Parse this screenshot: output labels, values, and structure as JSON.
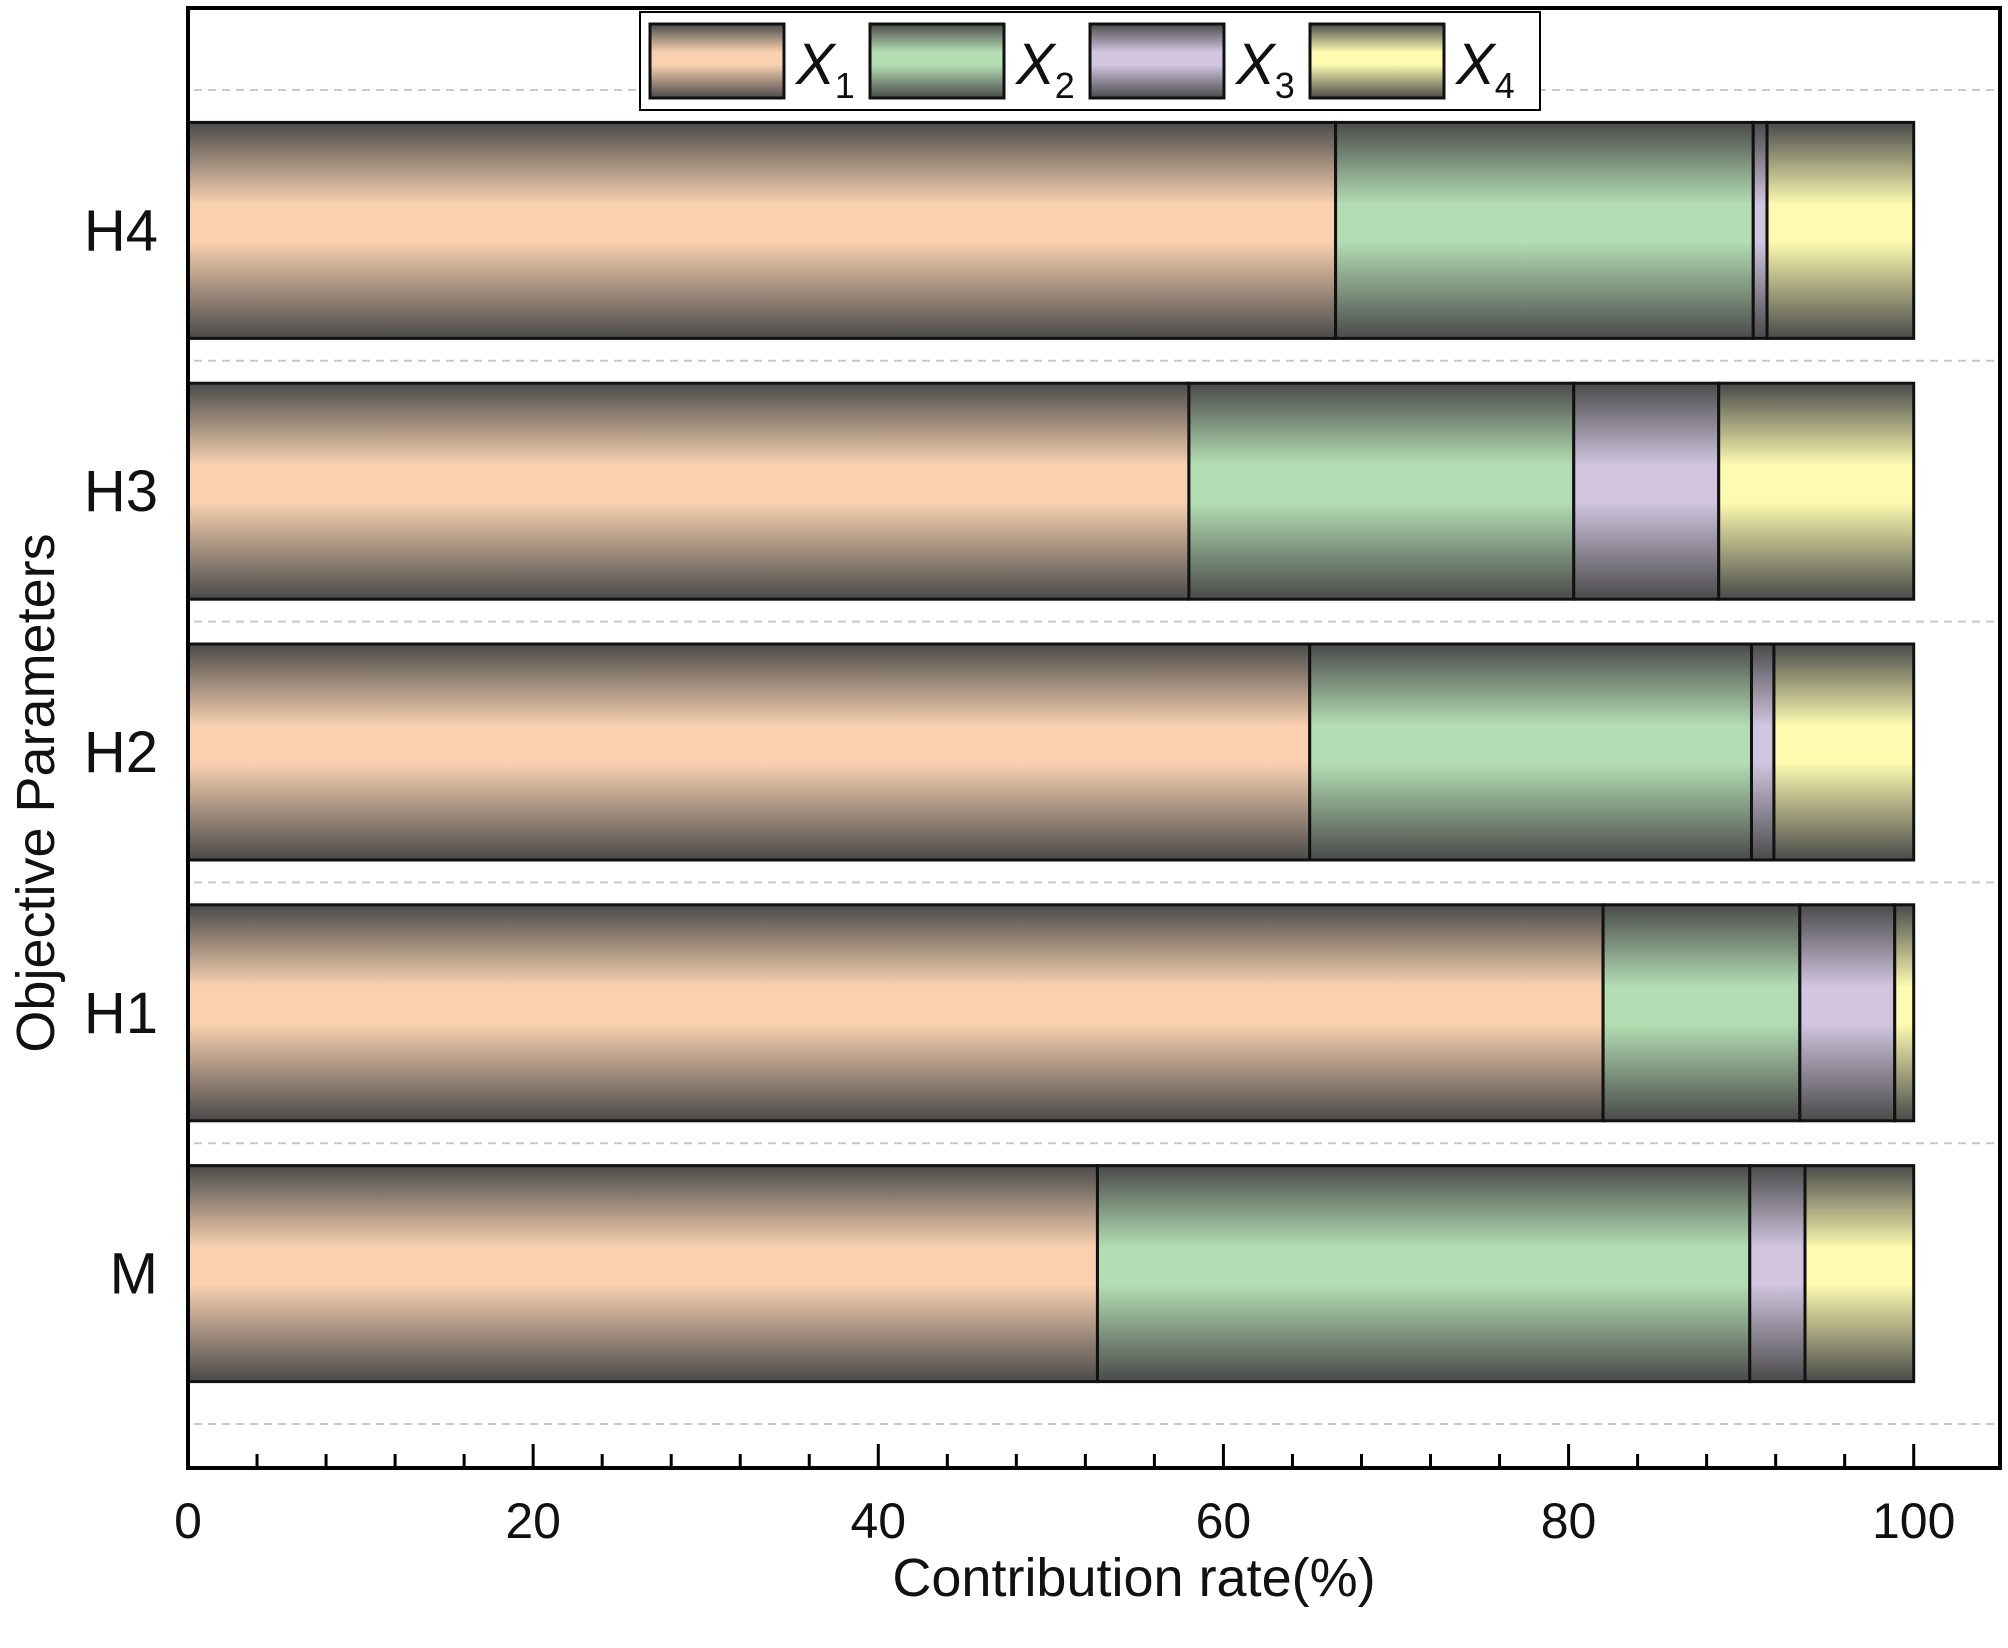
{
  "chart_data": {
    "type": "bar",
    "orientation": "horizontal",
    "stacked": true,
    "categories": [
      "M",
      "H1",
      "H2",
      "H3",
      "H4"
    ],
    "series": [
      {
        "name": "X",
        "subscript": "1",
        "color": "#f9d1b0",
        "values": [
          52.7,
          82.0,
          65.0,
          58.0,
          66.5
        ]
      },
      {
        "name": "X",
        "subscript": "2",
        "color": "#b3deb3",
        "values": [
          37.8,
          11.4,
          25.6,
          22.3,
          24.2
        ]
      },
      {
        "name": "X",
        "subscript": "3",
        "color": "#d1c5e0",
        "values": [
          3.2,
          5.5,
          1.3,
          8.4,
          0.8
        ]
      },
      {
        "name": "X",
        "subscript": "4",
        "color": "#fdfbb0",
        "values": [
          6.3,
          1.1,
          8.1,
          11.3,
          8.5
        ]
      }
    ],
    "xlabel": "Contribution rate(%)",
    "ylabel": "Objective Parameters",
    "xlim": [
      0,
      105
    ],
    "xticks": [
      0,
      20,
      40,
      60,
      80,
      100
    ],
    "legend_position": "top-center",
    "grid": "dashed horizontal separators between bars"
  }
}
